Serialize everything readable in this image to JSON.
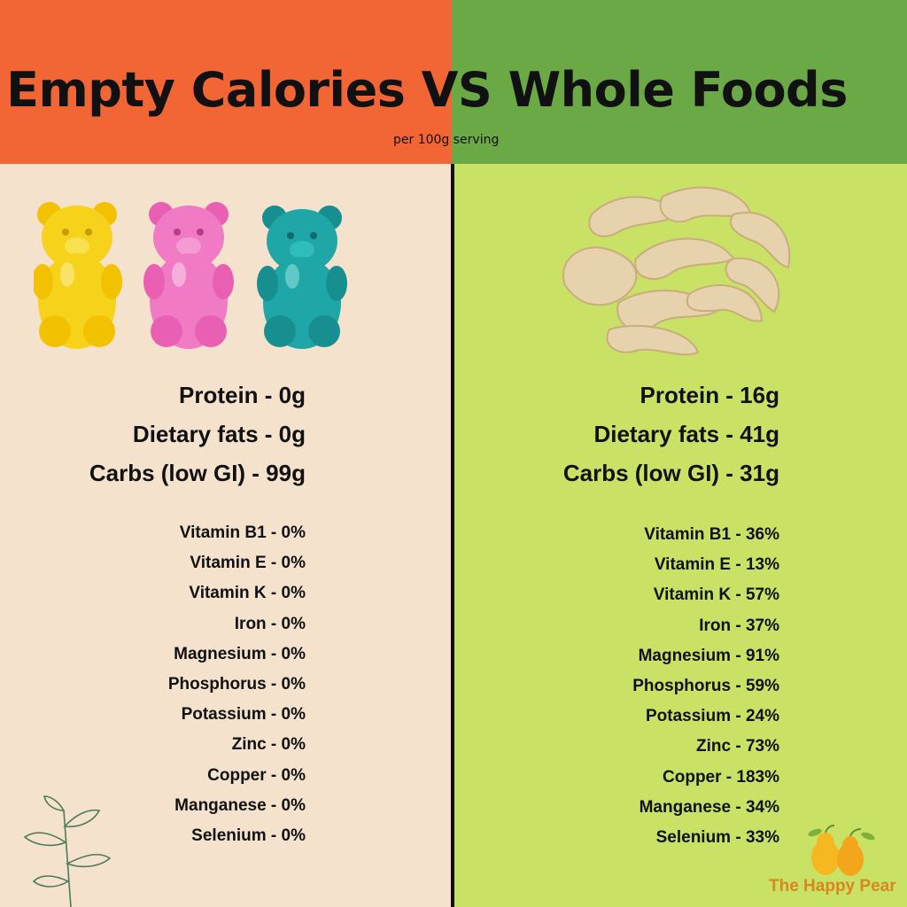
{
  "header": {
    "title": "Empty Calories VS Whole Foods",
    "subtitle": "per 100g serving"
  },
  "left": {
    "macros": [
      "Protein - 0g",
      "Dietary fats - 0g",
      "Carbs (low GI) - 99g"
    ],
    "micros": [
      "Vitamin B1 - 0%",
      "Vitamin E - 0%",
      "Vitamin K - 0%",
      "Iron - 0%",
      "Magnesium - 0%",
      "Phosphorus - 0%",
      "Potassium - 0%",
      "Zinc - 0%",
      "Copper - 0%",
      "Manganese - 0%",
      "Selenium - 0%"
    ]
  },
  "right": {
    "macros": [
      "Protein - 16g",
      "Dietary fats - 41g",
      "Carbs (low GI) - 31g"
    ],
    "micros": [
      "Vitamin B1 - 36%",
      "Vitamin E - 13%",
      "Vitamin K - 57%",
      "Iron - 37%",
      "Magnesium - 91%",
      "Phosphorus - 59%",
      "Potassium - 24%",
      "Zinc - 73%",
      "Copper - 183%",
      "Manganese - 34%",
      "Selenium - 33%"
    ]
  },
  "brand": {
    "name": "The Happy Pear"
  },
  "colors": {
    "header_left": "#f26535",
    "header_right": "#6aa945",
    "panel_left": "#f4e2cd",
    "panel_right": "#c9e265",
    "bear_yellow": "#f7d21b",
    "bear_pink": "#f07ac4",
    "bear_teal": "#1fa6a6",
    "cashew": "#e6d2ac"
  },
  "icons": [
    "gummy-bear-yellow-icon",
    "gummy-bear-pink-icon",
    "gummy-bear-teal-icon",
    "cashews-icon",
    "leaf-sprig-icon",
    "happy-pear-logo-icon"
  ]
}
